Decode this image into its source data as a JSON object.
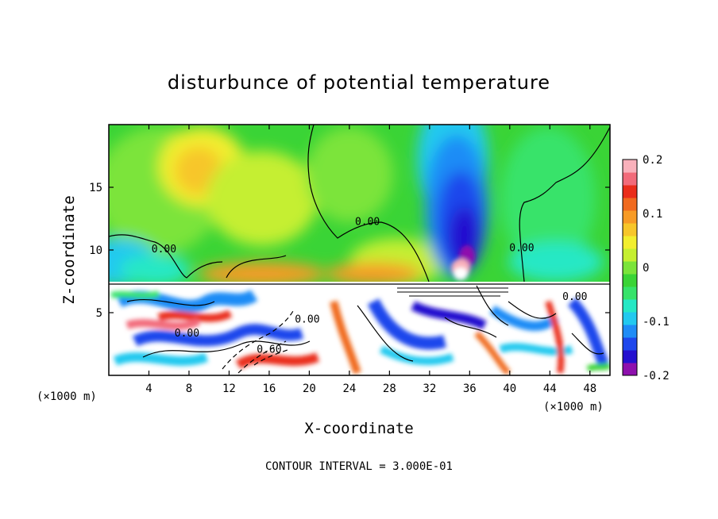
{
  "chart_data": {
    "type": "heatmap",
    "title": "disturbunce of potential temperature",
    "xlabel": "X-coordinate",
    "ylabel": "Z-coordinate",
    "x_unit_left": "(×1000 m)",
    "x_unit_right": "(×1000 m)",
    "xlim": [
      0,
      50
    ],
    "ylim": [
      0,
      20
    ],
    "x_ticks": [
      4,
      8,
      12,
      16,
      20,
      24,
      28,
      32,
      36,
      40,
      44,
      48
    ],
    "y_ticks": [
      5,
      10,
      15
    ],
    "colorbar": {
      "range": [
        -0.2,
        0.2
      ],
      "ticks": [
        {
          "value": 0.2,
          "label": "0.2"
        },
        {
          "value": 0.1,
          "label": "0.1"
        },
        {
          "value": 0.0,
          "label": "0"
        },
        {
          "value": -0.1,
          "label": "-0.1"
        },
        {
          "value": -0.2,
          "label": "-0.2"
        }
      ],
      "colors": [
        "#8e10ad",
        "#2410cf",
        "#1e47ec",
        "#1f8cf6",
        "#22c9ef",
        "#25e8c5",
        "#37e36a",
        "#3ad436",
        "#7be43a",
        "#c5ef30",
        "#f2ee2e",
        "#f7c62a",
        "#f79b26",
        "#f06a1f",
        "#ea2d1a",
        "#f26b7a",
        "#f9b1bb"
      ]
    },
    "contour_labels": [
      {
        "x": 5.5,
        "z": 9.8,
        "text": "0.00"
      },
      {
        "x": 25.8,
        "z": 12.0,
        "text": "0.00"
      },
      {
        "x": 41.2,
        "z": 9.9,
        "text": "0.00"
      },
      {
        "x": 7.8,
        "z": 3.1,
        "text": "0.00"
      },
      {
        "x": 19.8,
        "z": 4.2,
        "text": "0.00"
      },
      {
        "x": 16.0,
        "z": 1.8,
        "text": "0.60"
      },
      {
        "x": 46.5,
        "z": 6.0,
        "text": "0.00"
      }
    ],
    "contour_interval_note": "CONTOUR INTERVAL = 3.000E-01"
  }
}
